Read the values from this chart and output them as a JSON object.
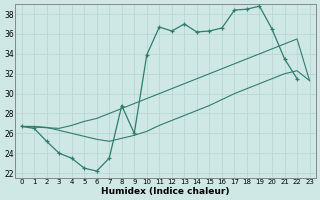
{
  "xlabel": "Humidex (Indice chaleur)",
  "background_color": "#cfe8e5",
  "grid_color": "#b8d8d5",
  "line_color": "#2e7d6e",
  "xlim": [
    -0.5,
    23.5
  ],
  "ylim": [
    21.5,
    39.0
  ],
  "xticks": [
    0,
    1,
    2,
    3,
    4,
    5,
    6,
    7,
    8,
    9,
    10,
    11,
    12,
    13,
    14,
    15,
    16,
    17,
    18,
    19,
    20,
    21,
    22,
    23
  ],
  "yticks": [
    22,
    24,
    26,
    28,
    30,
    32,
    34,
    36,
    38
  ],
  "line1_x": [
    0,
    1,
    2,
    3,
    4,
    5,
    6,
    7,
    8,
    9,
    10,
    11,
    12,
    13,
    14,
    15,
    16,
    17,
    18,
    19,
    20,
    21,
    22
  ],
  "line1_y": [
    26.7,
    26.5,
    25.2,
    24.0,
    23.5,
    22.5,
    22.2,
    23.5,
    28.8,
    26.0,
    33.9,
    36.7,
    36.3,
    37.0,
    36.2,
    36.3,
    36.6,
    38.4,
    38.5,
    38.8,
    36.5,
    33.5,
    31.5
  ],
  "line2_x": [
    0,
    3,
    4,
    5,
    6,
    7,
    8,
    9,
    10,
    11,
    12,
    13,
    14,
    15,
    16,
    17,
    18,
    19,
    20,
    21,
    22,
    23
  ],
  "line2_y": [
    26.7,
    26.5,
    26.8,
    27.2,
    27.5,
    28.0,
    28.5,
    29.0,
    29.5,
    30.0,
    30.5,
    31.0,
    31.5,
    32.0,
    32.5,
    33.0,
    33.5,
    34.0,
    34.5,
    35.0,
    35.5,
    31.3
  ],
  "line3_x": [
    0,
    1,
    2,
    3,
    4,
    5,
    6,
    7,
    8,
    9,
    10,
    11,
    12,
    13,
    14,
    15,
    16,
    17,
    18,
    19,
    20,
    21,
    22,
    23
  ],
  "line3_y": [
    26.7,
    26.7,
    26.6,
    26.3,
    26.0,
    25.7,
    25.4,
    25.2,
    25.5,
    25.8,
    26.2,
    26.8,
    27.3,
    27.8,
    28.3,
    28.8,
    29.4,
    30.0,
    30.5,
    31.0,
    31.5,
    32.0,
    32.3,
    31.3
  ]
}
